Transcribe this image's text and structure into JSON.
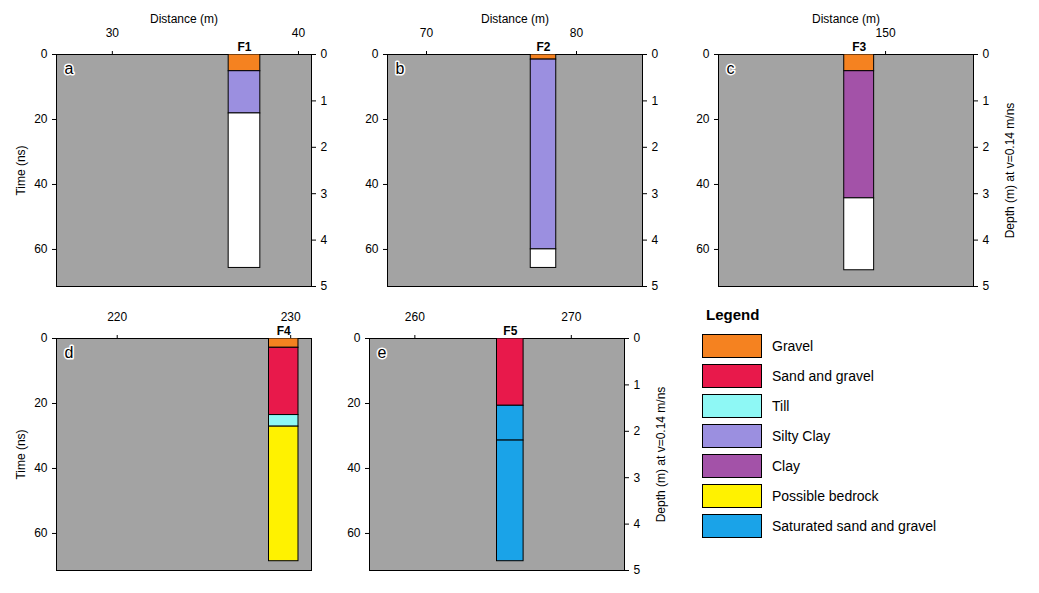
{
  "chart_data": [
    {
      "type": "bar",
      "stacked": true,
      "title": "F1",
      "annotation": "a",
      "xlabel": "Distance (m)",
      "ylabel": "Time (ns)",
      "xlim": [
        27,
        40.7
      ],
      "xticks": [
        30,
        40
      ],
      "ylim": [
        0,
        71.4
      ],
      "yticks": [
        0,
        20,
        40,
        60
      ],
      "y2lim": [
        0,
        5
      ],
      "y2ticks": [
        0,
        1,
        2,
        3,
        4,
        5
      ],
      "x": [
        37.1
      ],
      "series": [
        {
          "name": "Gravel",
          "color": "#f58220",
          "values": [
            0.36
          ],
          "axis": "y2"
        },
        {
          "name": "Silty Clay",
          "color": "#9b8fe0",
          "values": [
            0.91
          ],
          "axis": "y2"
        },
        {
          "name": null,
          "color": "#ffffff",
          "values": [
            3.33
          ],
          "axis": "y2"
        }
      ]
    },
    {
      "type": "bar",
      "stacked": true,
      "title": "F2",
      "annotation": "b",
      "xlabel": "Distance (m)",
      "xlim": [
        67.4,
        84.4
      ],
      "xticks": [
        70,
        80
      ],
      "ylim": [
        0,
        71.4
      ],
      "yticks": [
        0,
        20,
        40,
        60
      ],
      "y2lim": [
        0,
        5
      ],
      "y2ticks": [
        0,
        1,
        2,
        3,
        4,
        5
      ],
      "x": [
        77.8
      ],
      "series": [
        {
          "name": "Gravel",
          "color": "#f58220",
          "values": [
            0.11
          ],
          "axis": "y2"
        },
        {
          "name": "Silty Clay",
          "color": "#9b8fe0",
          "values": [
            4.09
          ],
          "axis": "y2"
        },
        {
          "name": null,
          "color": "#ffffff",
          "values": [
            0.4
          ],
          "axis": "y2"
        }
      ]
    },
    {
      "type": "bar",
      "stacked": true,
      "title": "F3",
      "annotation": "c",
      "xlabel": "Distance (m)",
      "y2label": "Depth (m) at v=0.14 m/ns",
      "xlim": [
        140.5,
        155
      ],
      "xticks": [
        150
      ],
      "ylim": [
        0,
        71.4
      ],
      "yticks": [
        0,
        20,
        40,
        60
      ],
      "y2lim": [
        0,
        5
      ],
      "y2ticks": [
        0,
        1,
        2,
        3,
        4,
        5
      ],
      "x": [
        148.5
      ],
      "series": [
        {
          "name": "Gravel",
          "color": "#f58220",
          "values": [
            0.36
          ],
          "axis": "y2"
        },
        {
          "name": "Clay",
          "color": "#a352a8",
          "values": [
            2.74
          ],
          "axis": "y2"
        },
        {
          "name": null,
          "color": "#ffffff",
          "values": [
            1.55
          ],
          "axis": "y2"
        }
      ]
    },
    {
      "type": "bar",
      "stacked": true,
      "title": "F4",
      "annotation": "d",
      "ylabel": "Time (ns)",
      "xlim": [
        216.5,
        231.2
      ],
      "xticks": [
        220,
        230
      ],
      "ylim": [
        0,
        71.4
      ],
      "yticks": [
        0,
        20,
        40,
        60
      ],
      "y2lim": [
        0,
        5
      ],
      "y2ticks": [],
      "x": [
        229.6
      ],
      "series": [
        {
          "name": "Gravel",
          "color": "#f58220",
          "values": [
            0.2
          ],
          "axis": "y2"
        },
        {
          "name": "Sand and gravel",
          "color": "#e8194b",
          "values": [
            1.45
          ],
          "axis": "y2"
        },
        {
          "name": "Till",
          "color": "#8ef8f5",
          "values": [
            0.25
          ],
          "axis": "y2"
        },
        {
          "name": "Possible bedrock",
          "color": "#fff200",
          "values": [
            2.9
          ],
          "axis": "y2"
        }
      ]
    },
    {
      "type": "bar",
      "stacked": true,
      "title": "F5",
      "annotation": "e",
      "y2label": "Depth (m) at v=0.14 m/ns",
      "xlim": [
        257.1,
        273.4
      ],
      "xticks": [
        260,
        270
      ],
      "ylim": [
        0,
        71.4
      ],
      "yticks": [
        0,
        20,
        40,
        60
      ],
      "y2lim": [
        0,
        5
      ],
      "y2ticks": [
        0,
        1,
        2,
        3,
        4,
        5
      ],
      "x": [
        266.1
      ],
      "series": [
        {
          "name": "Sand and gravel",
          "color": "#e8194b",
          "values": [
            1.45
          ],
          "axis": "y2"
        },
        {
          "name": "Saturated sand and gravel",
          "color": "#1aa3e8",
          "values": [
            0.75
          ],
          "axis": "y2"
        },
        {
          "name": "Saturated sand and gravel",
          "color": "#1aa3e8",
          "values": [
            2.6
          ],
          "axis": "y2"
        }
      ]
    }
  ],
  "legend_box": {
    "title": "Legend",
    "items": [
      {
        "name": "Gravel",
        "color": "#f58220"
      },
      {
        "name": "Sand and gravel",
        "color": "#e8194b"
      },
      {
        "name": "Till",
        "color": "#8ef8f5"
      },
      {
        "name": "Silty Clay",
        "color": "#9b8fe0"
      },
      {
        "name": "Clay",
        "color": "#a352a8"
      },
      {
        "name": "Possible bedrock",
        "color": "#fff200"
      },
      {
        "name": "Saturated sand and gravel",
        "color": "#1aa3e8"
      }
    ]
  }
}
